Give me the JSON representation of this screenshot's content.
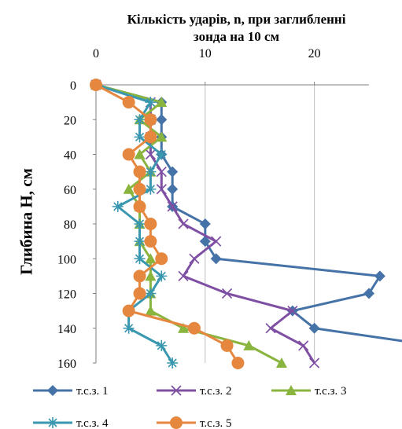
{
  "chart_data": {
    "type": "line",
    "title_line1": "Кількість ударів, n, при заглибленні",
    "title_line2": "зонда на 10 см",
    "ylabel": "Глибина Н, см",
    "xlabel": "",
    "x_axis_position": "top",
    "y_axis_inverted": true,
    "xlim": [
      0,
      25
    ],
    "ylim": [
      0,
      160
    ],
    "x_ticks": [
      0,
      10,
      20
    ],
    "y_ticks": [
      0,
      20,
      40,
      60,
      80,
      100,
      120,
      140,
      160
    ],
    "depth": [
      0,
      10,
      20,
      30,
      40,
      50,
      60,
      70,
      80,
      90,
      100,
      110,
      120,
      130,
      140,
      150,
      160
    ],
    "grid": "vertical",
    "legend_position": "bottom",
    "series": [
      {
        "name": "т.с.з. 1",
        "color": "#4572A7",
        "marker": "diamond",
        "values": [
          0,
          6,
          6,
          6,
          6,
          7,
          7,
          7,
          10,
          10,
          11,
          26,
          25,
          18,
          20,
          31,
          null
        ]
      },
      {
        "name": "т.с.з. 2",
        "color": "#7E4FA3",
        "marker": "x",
        "values": [
          0,
          5,
          5,
          5,
          5,
          6,
          6,
          7,
          8,
          11,
          9,
          8,
          12,
          18,
          16,
          19,
          20
        ]
      },
      {
        "name": "т.с.з. 3",
        "color": "#89B43E",
        "marker": "triangle",
        "values": [
          0,
          6,
          4,
          6,
          4,
          5,
          3,
          4,
          4,
          4,
          5,
          5,
          5,
          5,
          8,
          14,
          17
        ]
      },
      {
        "name": "т.с.з. 4",
        "color": "#3A97B0",
        "marker": "star",
        "values": [
          0,
          5,
          4,
          4,
          6,
          5,
          5,
          2,
          4,
          4,
          4,
          6,
          5,
          3,
          3,
          6,
          7
        ]
      },
      {
        "name": "т.с.з. 5",
        "color": "#E5873E",
        "marker": "circle",
        "values": [
          0,
          3,
          5,
          5,
          3,
          4,
          4,
          4,
          5,
          5,
          6,
          4,
          4,
          3,
          9,
          12,
          13
        ]
      }
    ]
  }
}
